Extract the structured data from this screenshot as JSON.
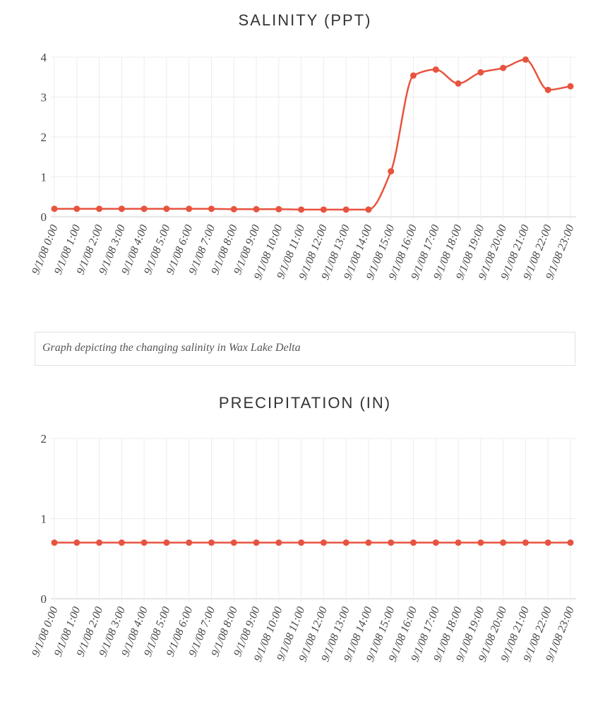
{
  "charts": {
    "salinity_title": "SALINITY (PPT)",
    "precip_title": "PRECIPITATION (IN)",
    "caption": "Graph depicting the changing salinity in Wax Lake Delta"
  },
  "colors": {
    "series": "#e8533f",
    "grid": "#ececec",
    "text": "#444444"
  },
  "chart_data": [
    {
      "type": "line",
      "title": "SALINITY (PPT)",
      "categories": [
        "9/1/08 0:00",
        "9/1/08 1:00",
        "9/1/08 2:00",
        "9/1/08 3:00",
        "9/1/08 4:00",
        "9/1/08 5:00",
        "9/1/08 6:00",
        "9/1/08 7:00",
        "9/1/08 8:00",
        "9/1/08 9:00",
        "9/1/08 10:00",
        "9/1/08 11:00",
        "9/1/08 12:00",
        "9/1/08 13:00",
        "9/1/08 14:00",
        "9/1/08 15:00",
        "9/1/08 16:00",
        "9/1/08 17:00",
        "9/1/08 18:00",
        "9/1/08 19:00",
        "9/1/08 20:00",
        "9/1/08 21:00",
        "9/1/08 22:00",
        "9/1/08 23:00"
      ],
      "series": [
        {
          "values": [
            0.2,
            0.2,
            0.2,
            0.2,
            0.2,
            0.2,
            0.2,
            0.2,
            0.19,
            0.19,
            0.19,
            0.18,
            0.18,
            0.18,
            0.18,
            1.14,
            3.54,
            3.69,
            3.34,
            3.62,
            3.73,
            3.94,
            3.18,
            3.27
          ]
        }
      ],
      "ylim": [
        0,
        4
      ],
      "yticks": [
        0,
        1,
        2,
        3,
        4
      ],
      "grid": true
    },
    {
      "type": "line",
      "title": "PRECIPITATION (IN)",
      "categories": [
        "9/1/08 0:00",
        "9/1/08 1:00",
        "9/1/08 2:00",
        "9/1/08 3:00",
        "9/1/08 4:00",
        "9/1/08 5:00",
        "9/1/08 6:00",
        "9/1/08 7:00",
        "9/1/08 8:00",
        "9/1/08 9:00",
        "9/1/08 10:00",
        "9/1/08 11:00",
        "9/1/08 12:00",
        "9/1/08 13:00",
        "9/1/08 14:00",
        "9/1/08 15:00",
        "9/1/08 16:00",
        "9/1/08 17:00",
        "9/1/08 18:00",
        "9/1/08 19:00",
        "9/1/08 20:00",
        "9/1/08 21:00",
        "9/1/08 22:00",
        "9/1/08 23:00"
      ],
      "series": [
        {
          "values": [
            0.7,
            0.7,
            0.7,
            0.7,
            0.7,
            0.7,
            0.7,
            0.7,
            0.7,
            0.7,
            0.7,
            0.7,
            0.7,
            0.7,
            0.7,
            0.7,
            0.7,
            0.7,
            0.7,
            0.7,
            0.7,
            0.7,
            0.7,
            0.7
          ]
        }
      ],
      "ylim": [
        0,
        2
      ],
      "yticks": [
        0,
        1,
        2
      ],
      "grid": true
    }
  ]
}
